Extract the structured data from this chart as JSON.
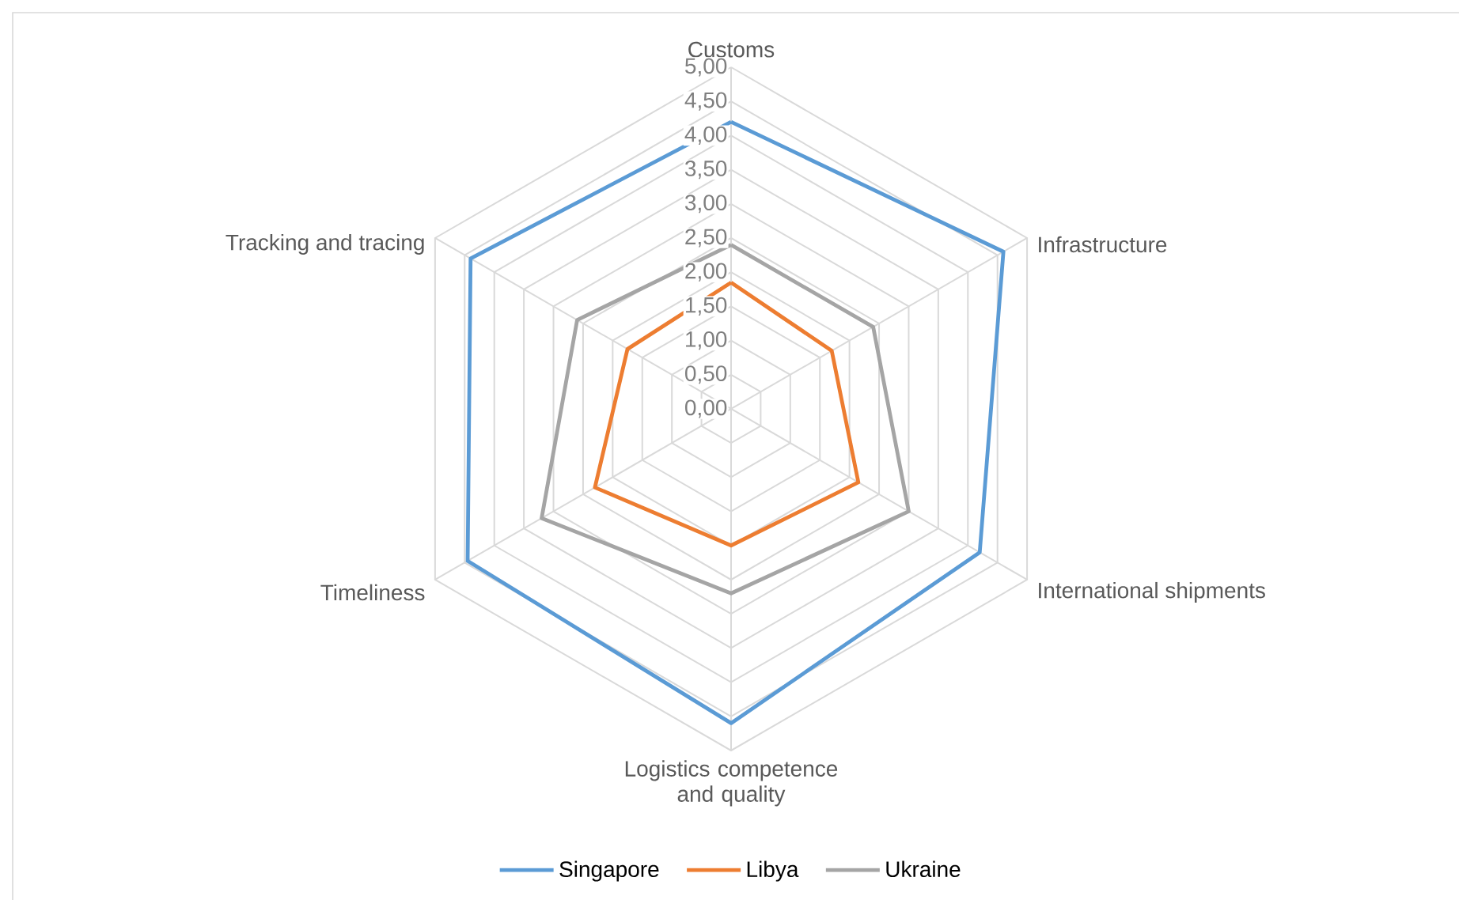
{
  "chart_data": {
    "type": "radar",
    "categories": [
      "Customs",
      "Infrastructure",
      "International shipments",
      "Logistics competence and quality",
      "Timeliness",
      "Tracking and tracing"
    ],
    "series": [
      {
        "name": "Singapore",
        "color": "#5b9bd5",
        "values": [
          4.2,
          4.6,
          4.2,
          4.6,
          4.45,
          4.4
        ]
      },
      {
        "name": "Libya",
        "color": "#ed7d31",
        "values": [
          1.85,
          1.7,
          2.15,
          2.0,
          2.3,
          1.75
        ]
      },
      {
        "name": "Ukraine",
        "color": "#a5a5a5",
        "values": [
          2.4,
          2.4,
          3.0,
          2.7,
          3.2,
          2.6
        ]
      }
    ],
    "ylim": [
      0,
      5
    ],
    "yticks": [
      {
        "value": 0,
        "label": "0,00"
      },
      {
        "value": 0.5,
        "label": "0,50"
      },
      {
        "value": 1,
        "label": "1,00"
      },
      {
        "value": 1.5,
        "label": "1,50"
      },
      {
        "value": 2,
        "label": "2,00"
      },
      {
        "value": 2.5,
        "label": "2,50"
      },
      {
        "value": 3,
        "label": "3,00"
      },
      {
        "value": 3.5,
        "label": "3,50"
      },
      {
        "value": 4,
        "label": "4,00"
      },
      {
        "value": 4.5,
        "label": "4,50"
      },
      {
        "value": 5,
        "label": "5,00"
      }
    ],
    "grid": true,
    "legend": "bottom",
    "line_style": "solid"
  }
}
